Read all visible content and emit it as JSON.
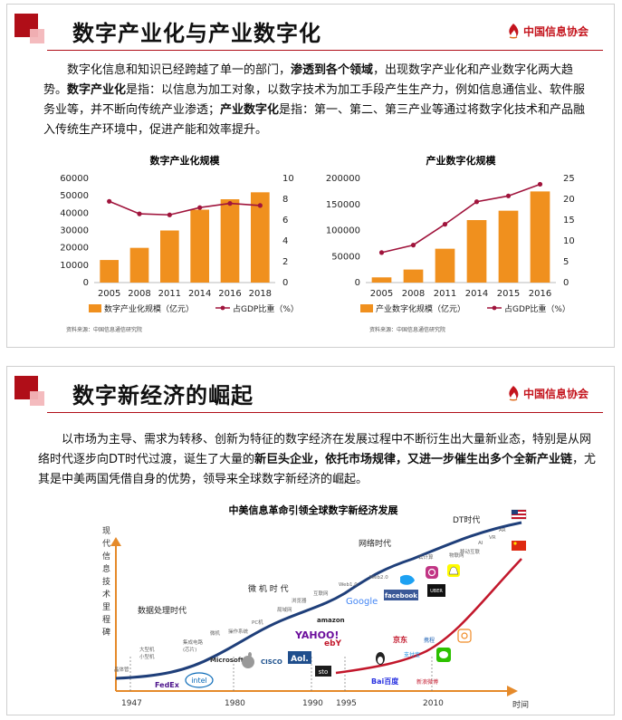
{
  "slide1": {
    "title": "数字产业化与产业数字化",
    "logo_text": "中国信息协会",
    "paragraph": [
      {
        "t": "数字化信息和知识已经跨越了单一的部门，",
        "b": false
      },
      {
        "t": "渗透到各个领域",
        "b": true
      },
      {
        "t": "，出现数字产业化和产业数字化两大趋势。",
        "b": false
      },
      {
        "t": "数字产业化",
        "b": true
      },
      {
        "t": "是指：以信息为加工对象，以数字技术为加工手段产生生产力，例如信息通信业、软件服务业等，并不断向传统产业渗透；",
        "b": false
      },
      {
        "t": "产业数字化",
        "b": true
      },
      {
        "t": "是指：第一、第二、第三产业等通过将数字化技术和产品融入传统生产环境中，促进产能和效率提升。",
        "b": false
      }
    ],
    "source_left": "资料来源：中国信息通信研究院",
    "source_right": "资料来源：中国信息通信研究院"
  },
  "chart_data": [
    {
      "type": "bar",
      "title": "数字产业化规模",
      "categories": [
        "2005",
        "2008",
        "2011",
        "2014",
        "2016",
        "2018"
      ],
      "series": [
        {
          "name": "数字产业化规模（亿元）",
          "type": "bar",
          "axis": "left",
          "values": [
            13000,
            20000,
            30000,
            42000,
            48000,
            52000
          ]
        },
        {
          "name": "占GDP比重（%）",
          "type": "line",
          "axis": "right",
          "values": [
            7.8,
            6.6,
            6.5,
            7.2,
            7.6,
            7.4
          ]
        }
      ],
      "ylim_left": [
        0,
        60000
      ],
      "yticks_left": [
        0,
        10000,
        20000,
        30000,
        40000,
        50000,
        60000
      ],
      "ylim_right": [
        0,
        10
      ],
      "yticks_right": [
        0,
        2,
        4,
        6,
        8,
        10
      ],
      "bar_color": "#f0901e",
      "line_color": "#a0143c",
      "legend": "bottom"
    },
    {
      "type": "bar",
      "title": "产业数字化规模",
      "categories": [
        "2005",
        "2008",
        "2011",
        "2014",
        "2015",
        "2016"
      ],
      "series": [
        {
          "name": "产业数字化规模（亿元）",
          "type": "bar",
          "axis": "left",
          "values": [
            10000,
            25000,
            65000,
            120000,
            138000,
            175000
          ]
        },
        {
          "name": "占GDP比重（%）",
          "type": "line",
          "axis": "right",
          "values": [
            7.2,
            9.0,
            14.0,
            19.4,
            20.8,
            23.6
          ]
        }
      ],
      "ylim_left": [
        0,
        200000
      ],
      "yticks_left": [
        0,
        50000,
        100000,
        150000,
        200000
      ],
      "ylim_right": [
        0,
        25
      ],
      "yticks_right": [
        0,
        5,
        10,
        15,
        20,
        25
      ],
      "bar_color": "#f0901e",
      "line_color": "#a0143c",
      "legend": "bottom"
    }
  ],
  "slide2": {
    "title": "数字新经济的崛起",
    "logo_text": "中国信息协会",
    "paragraph": [
      {
        "t": "以市场为主导、需求为转移、创新为特征的数字经济在发展过程中不断衍生出大量新业态，特别是从网络时代逐步向DT时代过渡，诞生了大量的",
        "b": false
      },
      {
        "t": "新巨头企业，依托市场规律，又进一步催生出多个全新产业链",
        "b": true
      },
      {
        "t": "，尤其是中美两国凭借自身的优势，领导来全球数字新经济的崛起。",
        "b": false
      }
    ],
    "diagram": {
      "title": "中美信息革命引领全球数字新经济发展",
      "y_axis_label": [
        "现",
        "代",
        "信",
        "息",
        "技",
        "术",
        "里",
        "程",
        "碑"
      ],
      "x_axis_label": "时间",
      "years": [
        "1947",
        "1980",
        "1990",
        "1995",
        "2010"
      ],
      "eras": {
        "data": "数据处理时代",
        "micro": "微 机 时 代",
        "network": "网络时代",
        "dt": "DT时代"
      },
      "tech": {
        "transistor": "晶体管",
        "mainframe": "大型机\n小型机",
        "integrated": "集成电路\n(芯片)",
        "micro": "微机",
        "os": "操作系统",
        "pc": "PC机",
        "lan": "局域网",
        "browser": "浏览器",
        "isp": "互联网",
        "web1": "Web1.0",
        "web2": "Web2.0",
        "cloud": "云计算",
        "mobile": "移动互联",
        "iot": "物联网",
        "ai": "AI",
        "vr": "VR",
        "ar": "AR",
        "fedex": "FedEx",
        "intel": "intel",
        "microsoft": "Microsoft",
        "cisco": "CISCO",
        "aol": "Aol.",
        "yahoo": "YAHOO!",
        "amazon": "amazon",
        "ebay": "ebY",
        "stock": "sto",
        "google": "Google",
        "facebook": "facebook",
        "uber": "UBER",
        "baidu": "Bai百度",
        "weibo": "新浪微博",
        "alipay": "支付宝",
        "jd": "京东",
        "ctrip": "携程"
      }
    }
  }
}
